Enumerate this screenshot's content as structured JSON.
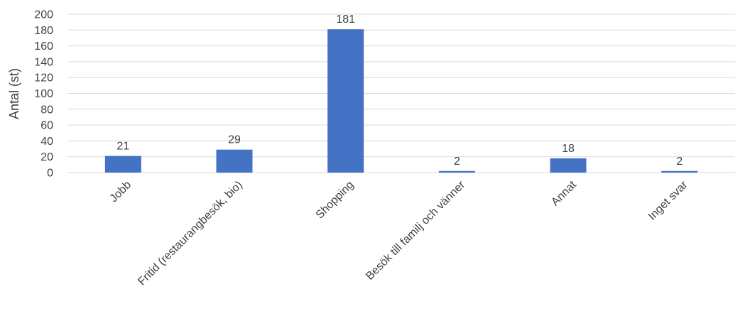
{
  "chart_data": {
    "type": "bar",
    "title": "",
    "xlabel": "",
    "ylabel": "Antal (st)",
    "categories": [
      "Jobb",
      "Fritid (restaurangbesök, bio)",
      "Shopping",
      "Besök till familj och vänner",
      "Annat",
      "Inget svar"
    ],
    "values": [
      21,
      29,
      181,
      2,
      18,
      2
    ],
    "ylim": [
      0,
      200
    ],
    "yticks": [
      0,
      20,
      40,
      60,
      80,
      100,
      120,
      140,
      160,
      180,
      200
    ],
    "grid": true,
    "legend": "none",
    "data_labels": true,
    "colors": {
      "bar": "#4472C4",
      "grid": "#D9D9D9",
      "text": "#404040"
    }
  }
}
